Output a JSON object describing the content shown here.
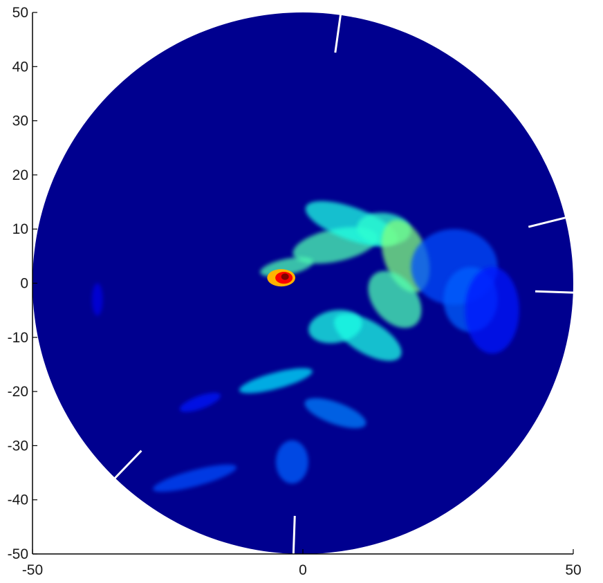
{
  "chart_data": {
    "type": "heatmap",
    "subtype": "polar-sector-scan",
    "title": "",
    "xlabel": "",
    "ylabel": "",
    "xlim": [
      -50,
      50
    ],
    "ylim": [
      -50,
      50
    ],
    "x_ticks": [
      -50,
      0,
      50
    ],
    "y_ticks": [
      50,
      40,
      30,
      20,
      10,
      0,
      -10,
      -20,
      -30,
      -40,
      -50
    ],
    "x_tick_labels": [
      "-50",
      "0",
      "50"
    ],
    "y_tick_labels": [
      "50",
      "40",
      "30",
      "20",
      "10",
      "0",
      "-10",
      "-20",
      "-30",
      "-40",
      "-50"
    ],
    "grid": false,
    "colormap": "jet",
    "background_color": "#00008f",
    "disc_radius": 50,
    "gap_angles_deg": [
      -2,
      82,
      14,
      -134,
      -92
    ],
    "intensity_regions": [
      {
        "x": 6,
        "y": 7,
        "rx": 8,
        "ry": 3,
        "rot": -12,
        "level": 0.45
      },
      {
        "x": 9,
        "y": 11,
        "rx": 9,
        "ry": 3,
        "rot": 20,
        "level": 0.4
      },
      {
        "x": 15,
        "y": 10,
        "rx": 5,
        "ry": 3,
        "rot": 5,
        "level": 0.42
      },
      {
        "x": 19,
        "y": 5,
        "rx": 4,
        "ry": 7,
        "rot": -20,
        "level": 0.5
      },
      {
        "x": 17,
        "y": -3,
        "rx": 4,
        "ry": 6,
        "rot": -40,
        "level": 0.45
      },
      {
        "x": 12,
        "y": -10,
        "rx": 7,
        "ry": 3,
        "rot": 30,
        "level": 0.4
      },
      {
        "x": 6,
        "y": -8,
        "rx": 5,
        "ry": 3,
        "rot": -10,
        "level": 0.4
      },
      {
        "x": -3,
        "y": 3,
        "rx": 5,
        "ry": 1.5,
        "rot": -12,
        "level": 0.45
      },
      {
        "x": 28,
        "y": 3,
        "rx": 8,
        "ry": 7,
        "rot": 0,
        "level": 0.2
      },
      {
        "x": 31,
        "y": -3,
        "rx": 5,
        "ry": 6,
        "rot": 0,
        "level": 0.22
      },
      {
        "x": -5,
        "y": -18,
        "rx": 7,
        "ry": 1.5,
        "rot": -15,
        "level": 0.35
      },
      {
        "x": 6,
        "y": -24,
        "rx": 6,
        "ry": 2,
        "rot": 20,
        "level": 0.25
      },
      {
        "x": -2,
        "y": -33,
        "rx": 3,
        "ry": 4,
        "rot": 0,
        "level": 0.22
      },
      {
        "x": -20,
        "y": -36,
        "rx": 8,
        "ry": 1.5,
        "rot": -15,
        "level": 0.2
      },
      {
        "x": -19,
        "y": -22,
        "rx": 4,
        "ry": 1.2,
        "rot": -20,
        "level": 0.15
      },
      {
        "x": -38,
        "y": -3,
        "rx": 1,
        "ry": 3,
        "rot": 0,
        "level": 0.1
      },
      {
        "x": 35,
        "y": -5,
        "rx": 5,
        "ry": 8,
        "rot": 0,
        "level": 0.15
      },
      {
        "x": -4,
        "y": 1,
        "rx": 2.6,
        "ry": 1.6,
        "rot": 0,
        "level": 0.7
      },
      {
        "x": -3.5,
        "y": 1,
        "rx": 1.6,
        "ry": 1.1,
        "rot": 0,
        "level": 0.88
      },
      {
        "x": -3.3,
        "y": 1.2,
        "rx": 0.7,
        "ry": 0.6,
        "rot": 0,
        "level": 1.0
      }
    ]
  }
}
